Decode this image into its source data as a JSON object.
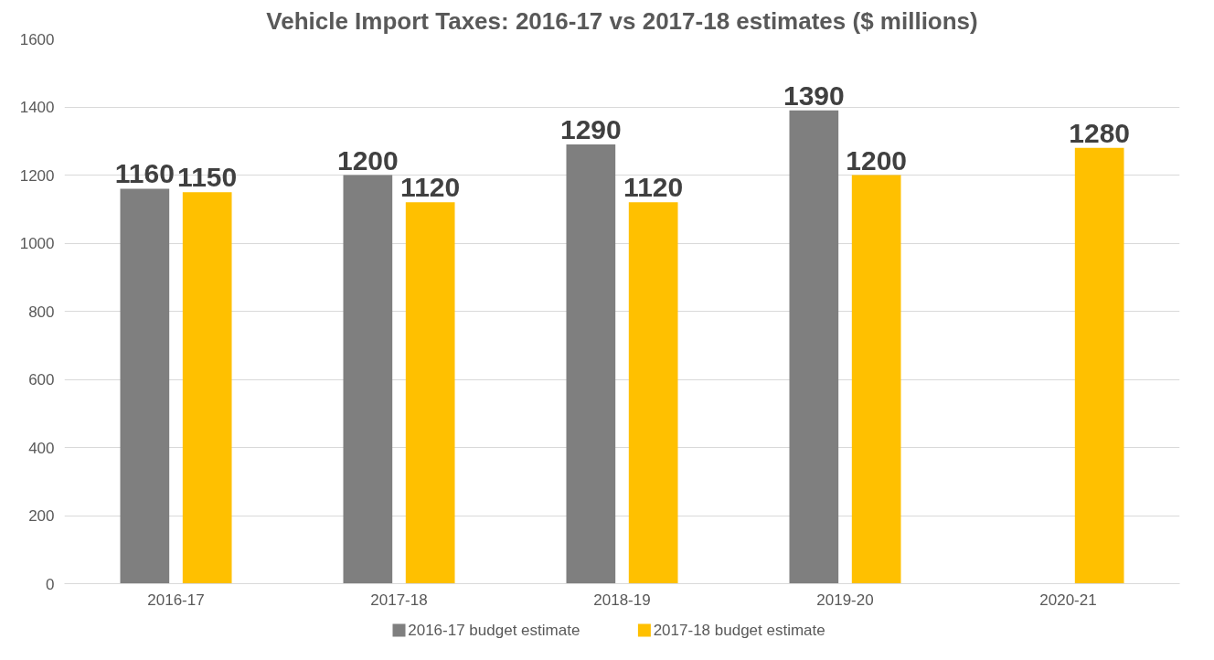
{
  "chart_data": {
    "type": "bar",
    "title": "Vehicle Import Taxes: 2016-17 vs 2017-18 estimates ($ millions)",
    "categories": [
      "2016-17",
      "2017-18",
      "2018-19",
      "2019-20",
      "2020-21"
    ],
    "series": [
      {
        "name": "2016-17 budget estimate",
        "color": "#7f7f7f",
        "values": [
          1160,
          1200,
          1290,
          1390,
          null
        ]
      },
      {
        "name": "2017-18 budget estimate",
        "color": "#ffc000",
        "values": [
          1150,
          1120,
          1120,
          1200,
          1280
        ]
      }
    ],
    "ylim": [
      0,
      1600
    ],
    "yticks": [
      0,
      200,
      400,
      600,
      800,
      1000,
      1200,
      1400,
      1600
    ],
    "grid": "y",
    "legend": "bottom",
    "data_labels": true
  }
}
